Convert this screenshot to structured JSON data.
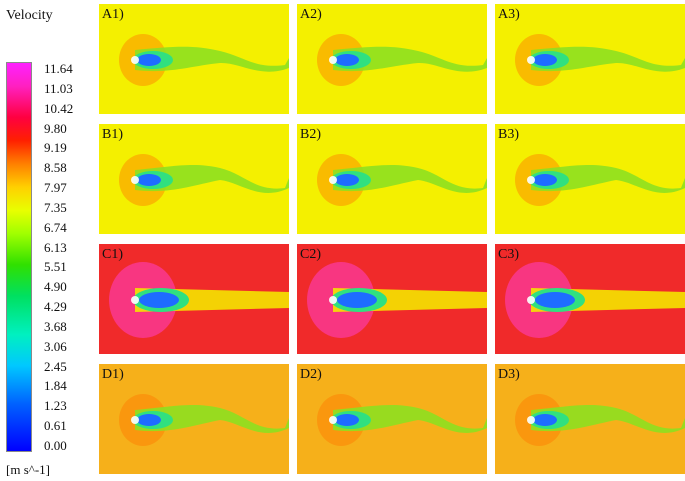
{
  "legend": {
    "title": "Velocity",
    "units": "[m s^-1]",
    "ticks": [
      "11.64",
      "11.03",
      "10.42",
      "9.80",
      "9.19",
      "8.58",
      "7.97",
      "7.35",
      "6.74",
      "6.13",
      "5.51",
      "4.90",
      "4.29",
      "3.68",
      "3.06",
      "2.45",
      "1.84",
      "1.23",
      "0.61",
      "0.00"
    ]
  },
  "panels": [
    {
      "label": "A1)",
      "bg": "#f4f000"
    },
    {
      "label": "A2)",
      "bg": "#f4f000"
    },
    {
      "label": "A3)",
      "bg": "#f4f000"
    },
    {
      "label": "B1)",
      "bg": "#f4f000"
    },
    {
      "label": "B2)",
      "bg": "#f4f000"
    },
    {
      "label": "B3)",
      "bg": "#f4f000"
    },
    {
      "label": "C1)",
      "bg": "#f02a2a"
    },
    {
      "label": "C2)",
      "bg": "#f02a2a"
    },
    {
      "label": "C3)",
      "bg": "#f02a2a"
    },
    {
      "label": "D1)",
      "bg": "#f6b01a"
    },
    {
      "label": "D2)",
      "bg": "#f6b01a"
    },
    {
      "label": "D3)",
      "bg": "#f6b01a"
    }
  ]
}
